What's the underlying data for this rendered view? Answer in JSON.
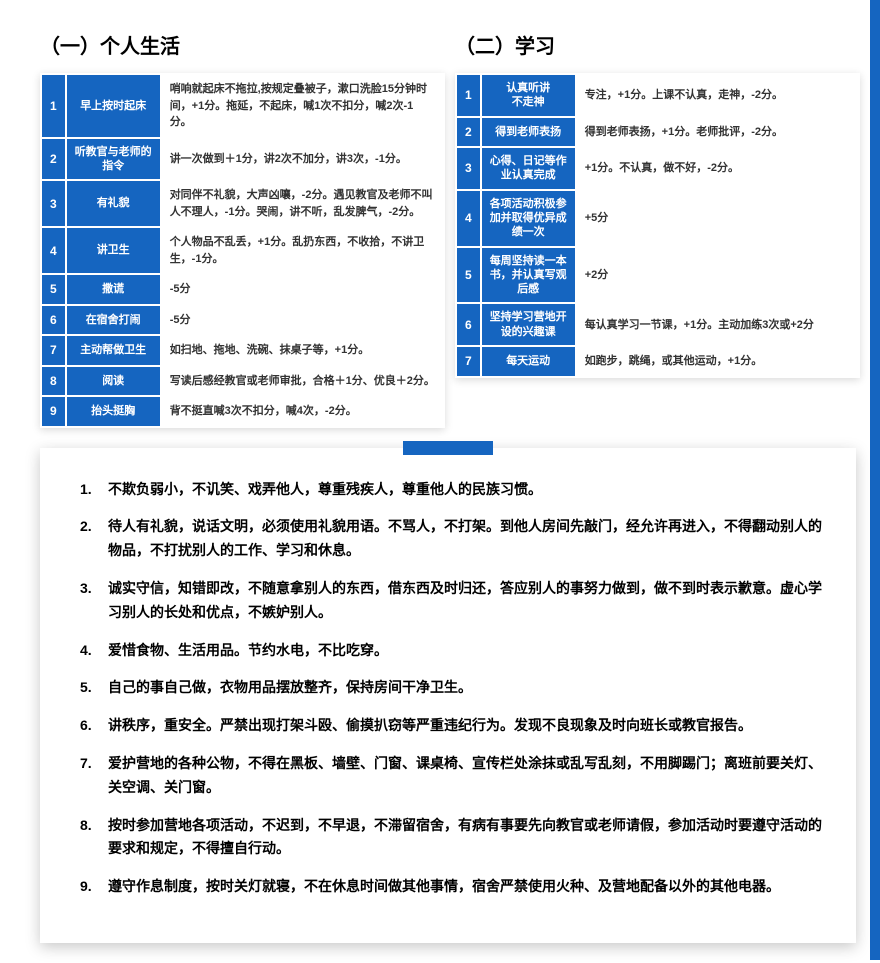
{
  "colors": {
    "primary": "#1565c0",
    "text": "#000000",
    "cell_text": "#333333",
    "background": "#ffffff"
  },
  "section1": {
    "title": "（一）个人生活",
    "rows": [
      {
        "n": "1",
        "label": "早上按时起床",
        "desc": "哨响就起床不拖拉,按规定叠被子，漱口洗脸15分钟时间，+1分。拖延，不起床，喊1次不扣分，喊2次-1分。"
      },
      {
        "n": "2",
        "label": "听教官与老师的指令",
        "desc": "讲一次做到＋1分，讲2次不加分，讲3次，-1分。"
      },
      {
        "n": "3",
        "label": "有礼貌",
        "desc": "对同伴不礼貌，大声凶嚷，-2分。遇见教官及老师不叫人不理人，-1分。哭闹，讲不听，乱发脾气，-2分。"
      },
      {
        "n": "4",
        "label": "讲卫生",
        "desc": "个人物品不乱丢，+1分。乱扔东西，不收拾，不讲卫生，-1分。"
      },
      {
        "n": "5",
        "label": "撒谎",
        "desc": "-5分"
      },
      {
        "n": "6",
        "label": "在宿舍打闹",
        "desc": "-5分"
      },
      {
        "n": "7",
        "label": "主动帮做卫生",
        "desc": "如扫地、拖地、洗碗、抹桌子等，+1分。"
      },
      {
        "n": "8",
        "label": "阅读",
        "desc": "写读后感经教官或老师审批，合格＋1分、优良＋2分。"
      },
      {
        "n": "9",
        "label": "抬头挺胸",
        "desc": "背不挺直喊3次不扣分，喊4次，-2分。"
      }
    ]
  },
  "section2": {
    "title": "（二）学习",
    "rows": [
      {
        "n": "1",
        "label": "认真听讲\n不走神",
        "desc": "专注，+1分。上课不认真，走神，-2分。"
      },
      {
        "n": "2",
        "label": "得到老师表扬",
        "desc": "得到老师表扬，+1分。老师批评，-2分。"
      },
      {
        "n": "3",
        "label": "心得、日记等作业认真完成",
        "desc": "+1分。不认真，做不好，-2分。"
      },
      {
        "n": "4",
        "label": "各项活动积极参加并取得优异成绩一次",
        "desc": "+5分"
      },
      {
        "n": "5",
        "label": "每周坚持读一本书，并认真写观后感",
        "desc": "+2分"
      },
      {
        "n": "6",
        "label": "坚持学习营地开设的兴趣课",
        "desc": "每认真学习一节课，+1分。主动加练3次或+2分"
      },
      {
        "n": "7",
        "label": "每天运动",
        "desc": "如跑步，跳绳，或其他运动，+1分。"
      }
    ]
  },
  "rules": [
    "不欺负弱小，不讥笑、戏弄他人，尊重残疾人，尊重他人的民族习惯。",
    "待人有礼貌，说话文明，必须使用礼貌用语。不骂人，不打架。到他人房间先敲门，经允许再进入，不得翻动别人的物品，不打扰别人的工作、学习和休息。",
    "诚实守信，知错即改，不随意拿别人的东西，借东西及时归还，答应别人的事努力做到，做不到时表示歉意。虚心学习别人的长处和优点，不嫉妒别人。",
    "爱惜食物、生活用品。节约水电，不比吃穿。",
    "自己的事自己做，衣物用品摆放整齐，保持房间干净卫生。",
    "讲秩序，重安全。严禁出现打架斗殴、偷摸扒窃等严重违纪行为。发现不良现象及时向班长或教官报告。",
    "爱护营地的各种公物，不得在黑板、墙壁、门窗、课桌椅、宣传栏处涂抹或乱写乱刻，不用脚踢门；离班前要关灯、关空调、关门窗。",
    "按时参加营地各项活动，不迟到，不早退，不滞留宿舍，有病有事要先向教官或老师请假，参加活动时要遵守活动的要求和规定，不得擅自行动。",
    "遵守作息制度，按时关灯就寝，不在休息时间做其他事情，宿舍严禁使用火种、及营地配备以外的其他电器。"
  ]
}
